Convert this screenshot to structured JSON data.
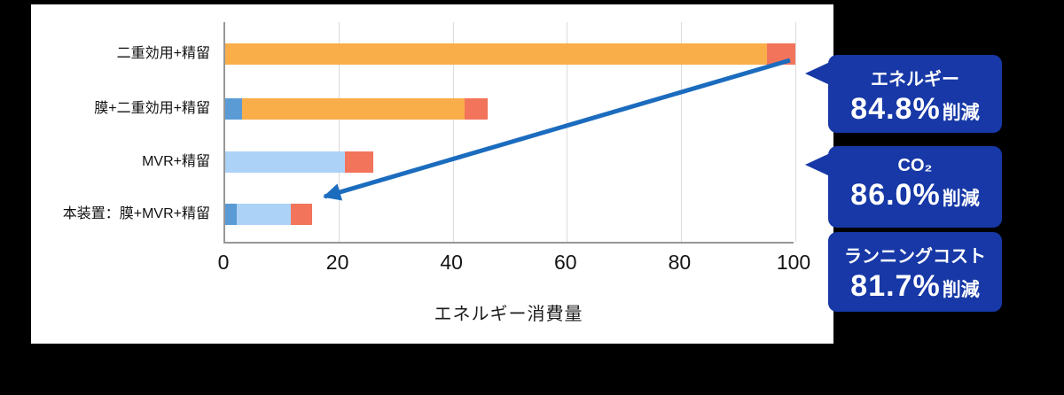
{
  "colors": {
    "stage_bg": "#000000",
    "panel_bg": "#ffffff",
    "callout_bg": "#1738A6",
    "arrow": "#1B6CBE",
    "axis": "#979797",
    "grid": "#dcdcdc",
    "orange": "#F9AE4A",
    "salmon": "#F2745B",
    "lightblue": "#ADD2F7",
    "blue": "#5B9BD5"
  },
  "chart_data": {
    "type": "bar",
    "orientation": "horizontal",
    "stacked": true,
    "title": "",
    "xlabel": "エネルギー消費量",
    "ylabel": "",
    "xlim": [
      0,
      100
    ],
    "x_ticks": [
      0,
      20,
      40,
      60,
      80,
      100
    ],
    "grid": "vertical-light",
    "categories": [
      "二重効用+精留",
      "膜+二重効用+精留",
      "MVR+精留",
      "本装置：膜+MVR+精留"
    ],
    "bars": [
      {
        "label": "二重効用+精留",
        "total": 100,
        "segments": [
          {
            "color_key": "orange",
            "value": 95
          },
          {
            "color_key": "salmon",
            "value": 5
          }
        ]
      },
      {
        "label": "膜+二重効用+精留",
        "total": 46,
        "segments": [
          {
            "color_key": "blue",
            "value": 3
          },
          {
            "color_key": "orange",
            "value": 39
          },
          {
            "color_key": "salmon",
            "value": 4
          }
        ]
      },
      {
        "label": "MVR+精留",
        "total": 26,
        "segments": [
          {
            "color_key": "lightblue",
            "value": 21
          },
          {
            "color_key": "salmon",
            "value": 5
          }
        ]
      },
      {
        "label": "本装置：膜+MVR+精留",
        "total": 15.2,
        "segments": [
          {
            "color_key": "blue",
            "value": 2
          },
          {
            "color_key": "lightblue",
            "value": 9.5
          },
          {
            "color_key": "salmon",
            "value": 3.7
          }
        ]
      }
    ],
    "annotation_arrow": {
      "from_value": 100,
      "from_row": 0,
      "to_value": 15.2,
      "to_row": 3
    }
  },
  "callouts": [
    {
      "title": "エネルギー",
      "value": "84.8%",
      "suffix": "削減"
    },
    {
      "title": "CO₂",
      "value": "86.0%",
      "suffix": "削減"
    },
    {
      "title": "ランニングコスト",
      "value": "81.7%",
      "suffix": "削減"
    }
  ]
}
